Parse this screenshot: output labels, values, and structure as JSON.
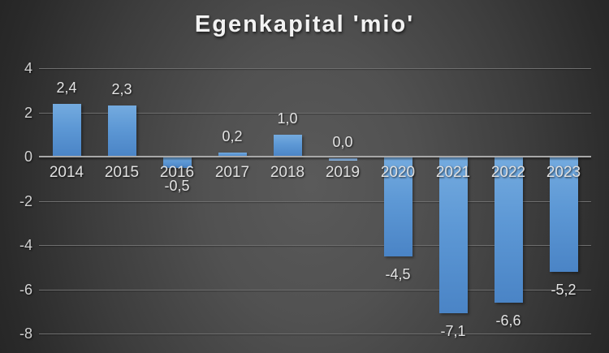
{
  "chart_data": {
    "type": "bar",
    "title": "Egenkapital 'mio'",
    "categories": [
      "2014",
      "2015",
      "2016",
      "2017",
      "2018",
      "2019",
      "2020",
      "2021",
      "2022",
      "2023"
    ],
    "values": [
      2.4,
      2.3,
      -0.5,
      0.2,
      1.0,
      0.0,
      -4.5,
      -7.1,
      -6.6,
      -5.2
    ],
    "value_labels": [
      "2,4",
      "2,3",
      "-0,5",
      "0,2",
      "1,0",
      "0,0",
      "-4,5",
      "-7,1",
      "-6,6",
      "-5,2"
    ],
    "y_ticks": [
      4,
      2,
      0,
      -2,
      -4,
      -6,
      -8
    ],
    "y_tick_labels": [
      "4",
      "2",
      "0",
      "-2",
      "-4",
      "-6",
      "-8"
    ],
    "ylim": [
      -8,
      4
    ],
    "xlabel": "",
    "ylabel": "",
    "grid": true,
    "legend": "none",
    "decimal_separator": ",",
    "colors": {
      "bar_gradient_top": "#74abdf",
      "bar_gradient_bottom": "#4a84c6",
      "zero_bar": "#8ab6e6",
      "background_center": "#5a5a5a",
      "background_edge": "#242424",
      "gridline": "#6f6f6f",
      "zero_line": "#a8a8a8",
      "title_text": "#f2f2f2",
      "value_text": "#e4e4e4",
      "category_text": "#e0e0e0",
      "axis_text": "#d2d2d2"
    }
  }
}
